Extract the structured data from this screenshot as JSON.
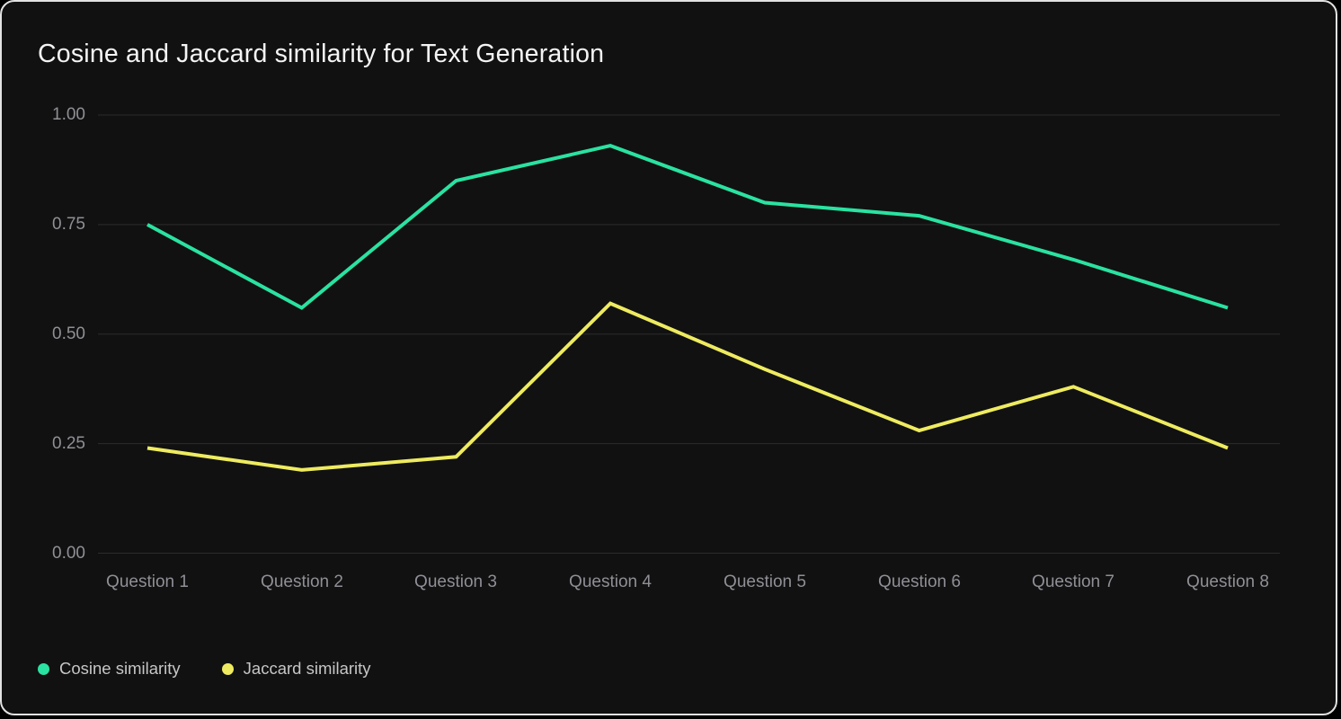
{
  "chart_data": {
    "type": "line",
    "title": "Cosine and Jaccard similarity for Text Generation",
    "categories": [
      "Question 1",
      "Question 2",
      "Question 3",
      "Question 4",
      "Question 5",
      "Question 6",
      "Question 7",
      "Question 8"
    ],
    "series": [
      {
        "name": "Cosine similarity",
        "color": "#2ae2a1",
        "values": [
          0.75,
          0.56,
          0.85,
          0.93,
          0.8,
          0.77,
          0.67,
          0.56
        ]
      },
      {
        "name": "Jaccard similarity",
        "color": "#eeeb60",
        "values": [
          0.24,
          0.19,
          0.22,
          0.57,
          0.42,
          0.28,
          0.38,
          0.24
        ]
      }
    ],
    "xlabel": "",
    "ylabel": "",
    "ylim": [
      0,
      1
    ],
    "y_ticks": [
      "1.00",
      "0.75",
      "0.50",
      "0.25",
      "0.00"
    ],
    "y_tick_values": [
      1.0,
      0.75,
      0.5,
      0.25,
      0.0
    ],
    "grid": "horizontal",
    "legend_position": "bottom-left"
  },
  "colors": {
    "background": "#111111",
    "card_border": "#e2e2e2",
    "gridline": "#2c2c2c",
    "title_text": "#f4f4f4",
    "tick_text": "#8f8f96",
    "legend_text": "#c6c6c6"
  }
}
